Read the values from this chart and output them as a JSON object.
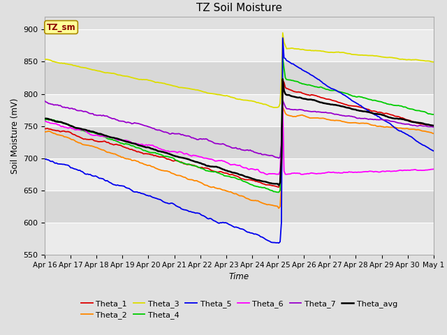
{
  "title": "TZ Soil Moisture",
  "xlabel": "Time",
  "ylabel": "Soil Moisture (mV)",
  "ylim": [
    550,
    920
  ],
  "yticks": [
    550,
    600,
    650,
    700,
    750,
    800,
    850,
    900
  ],
  "date_labels": [
    "Apr 16",
    "Apr 17",
    "Apr 18",
    "Apr 19",
    "Apr 20",
    "Apr 21",
    "Apr 22",
    "Apr 23",
    "Apr 24",
    "Apr 25",
    "Apr 26",
    "Apr 27",
    "Apr 28",
    "Apr 29",
    "Apr 30",
    "May 1"
  ],
  "n_days": 15.0,
  "rain_day": 9.0,
  "legend_label": "TZ_sm",
  "series_colors": {
    "Theta_1": "#dd0000",
    "Theta_2": "#ff8800",
    "Theta_3": "#dddd00",
    "Theta_4": "#00cc00",
    "Theta_5": "#0000ee",
    "Theta_6": "#ff00ff",
    "Theta_7": "#9900cc",
    "Theta_avg": "#000000"
  },
  "bg_color": "#e0e0e0",
  "band_colors": [
    "#ebebeb",
    "#d8d8d8"
  ],
  "figsize": [
    6.4,
    4.8
  ],
  "dpi": 100
}
